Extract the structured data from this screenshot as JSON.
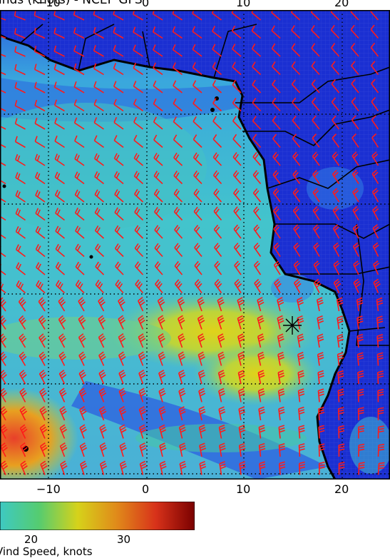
{
  "title": "inds (knots) - NCEP GFS",
  "map": {
    "lon_ticks": [
      "−10",
      "0",
      "10",
      "20"
    ],
    "lon_tick_values": [
      -10,
      0,
      10,
      20
    ],
    "lat_gridlines": 5,
    "barb_color": "#ff1a1a",
    "coast_color": "#000000"
  },
  "colorbar": {
    "tick_labels": [
      "20",
      "30"
    ],
    "label": "Vind Speed, knots",
    "colors": [
      "#3ec9c2",
      "#55cc70",
      "#d6d21a",
      "#e08a1a",
      "#d8321a",
      "#7a0000"
    ]
  }
}
